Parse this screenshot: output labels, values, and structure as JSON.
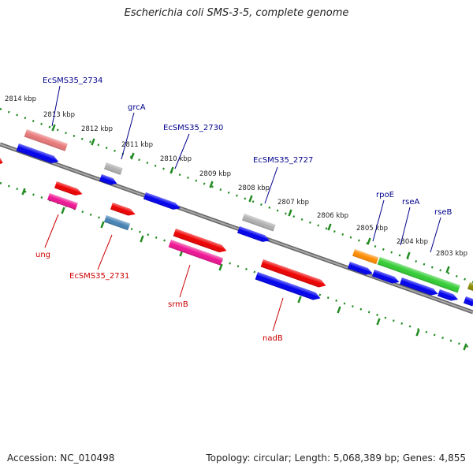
{
  "title": "Escherichia coli SMS-3-5, complete genome",
  "footer": {
    "accession": "Accession: NC_010498",
    "summary": "Topology: circular; Length: 5,068,389 bp; Genes: 4,855"
  },
  "kbp_labels": [
    "2814 kbp",
    "2813 kbp",
    "2812 kbp",
    "2811 kbp",
    "2810 kbp",
    "2809 kbp",
    "2808 kbp",
    "2807 kbp",
    "2806 kbp",
    "2805 kbp",
    "2804 kbp",
    "2803 kbp"
  ],
  "genes_top": [
    "EcSMS35_2734",
    "grcA",
    "EcSMS35_2730",
    "EcSMS35_2727",
    "rpoE",
    "rseA",
    "rseB"
  ],
  "genes_bottom": [
    "ung",
    "EcSMS35_2731",
    "srmB",
    "nadB"
  ],
  "colors": {
    "backbone": "#808080",
    "forward_ticks": "#228b22",
    "top_label": "#00008b",
    "bottom_label": "#cc0000",
    "blue": "#0000ee",
    "red": "#ee0000",
    "pink": "#e87878",
    "magenta": "#ee1493",
    "gray": "#b0b0b0",
    "steelblue": "#4682b4",
    "orange": "#ff8c00",
    "green": "#33cc33",
    "olive": "#8b8b00"
  }
}
